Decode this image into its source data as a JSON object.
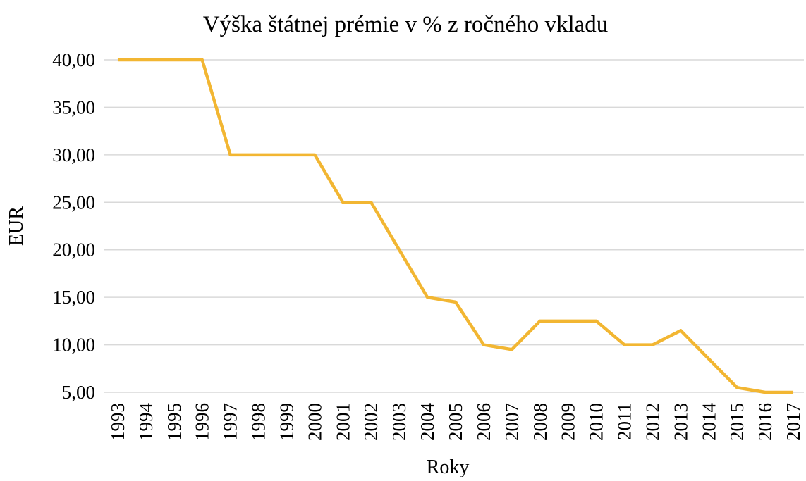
{
  "chart_data": {
    "type": "line",
    "title": "Výška štátnej prémie v % z ročného vkladu",
    "x_label": "Roky",
    "y_label": "EUR",
    "categories": [
      "1993",
      "1994",
      "1995",
      "1996",
      "1997",
      "1998",
      "1999",
      "2000",
      "2001",
      "2002",
      "2003",
      "2004",
      "2005",
      "2006",
      "2007",
      "2008",
      "2009",
      "2010",
      "2011",
      "2012",
      "2013",
      "2014",
      "2015",
      "2016",
      "2017"
    ],
    "series": [
      {
        "color": "#f2b632",
        "values": [
          40,
          40,
          40,
          40,
          30,
          30,
          30,
          30,
          25,
          25,
          20,
          15,
          14.5,
          10,
          9.5,
          12.5,
          12.5,
          12.5,
          10,
          10,
          11.5,
          8.5,
          5.5,
          5,
          5
        ]
      }
    ],
    "ylim": [
      5,
      40
    ],
    "yticks": [
      {
        "value": 5,
        "label": "5,00"
      },
      {
        "value": 10,
        "label": "10,00"
      },
      {
        "value": 15,
        "label": "15,00"
      },
      {
        "value": 20,
        "label": "20,00"
      },
      {
        "value": 25,
        "label": "25,00"
      },
      {
        "value": 30,
        "label": "30,00"
      },
      {
        "value": 35,
        "label": "35,00"
      },
      {
        "value": 40,
        "label": "40,00"
      }
    ],
    "grid": true
  }
}
